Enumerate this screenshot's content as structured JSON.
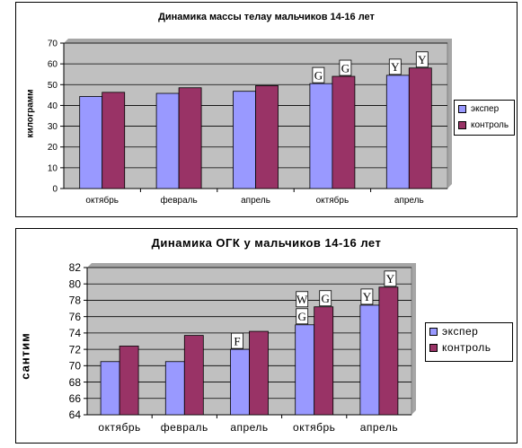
{
  "colors": {
    "plot_bg": "#c0c0c0",
    "eksper": "#9999ff",
    "kontrol": "#993366"
  },
  "chart_data": [
    {
      "type": "bar",
      "title": "Динамика массы телау мальчиков 14-16 лет",
      "ylabel": "килограмм",
      "xlabel": "",
      "ylim": [
        0,
        70
      ],
      "yticks": [
        "0",
        "10",
        "20",
        "30",
        "40",
        "50",
        "60",
        "70"
      ],
      "categories": [
        "октябрь",
        "февраль",
        "апрель",
        "октябрь",
        "апрель"
      ],
      "series": [
        {
          "name": "экспер",
          "values": [
            44.3,
            45.8,
            46.8,
            50.5,
            54.5
          ]
        },
        {
          "name": "контроль",
          "values": [
            46.3,
            48.5,
            49.5,
            54.0,
            58.0
          ]
        }
      ],
      "annotations": [
        {
          "category_index": 3,
          "series_index": 0,
          "text": "G"
        },
        {
          "category_index": 3,
          "series_index": 1,
          "text": "G"
        },
        {
          "category_index": 4,
          "series_index": 0,
          "text": "Y"
        },
        {
          "category_index": 4,
          "series_index": 1,
          "text": "Y"
        }
      ],
      "grid": true,
      "legend": "right"
    },
    {
      "type": "bar",
      "title": "Динамика ОГК у мальчиков 14-16 лет",
      "ylabel": "сантим",
      "xlabel": "",
      "ylim": [
        64,
        82
      ],
      "yticks": [
        "64",
        "66",
        "68",
        "70",
        "72",
        "74",
        "76",
        "78",
        "80",
        "82"
      ],
      "categories": [
        "октябрь",
        "февраль",
        "апрель",
        "октябрь",
        "апрель"
      ],
      "series": [
        {
          "name": "экспер",
          "values": [
            70.5,
            70.5,
            72.0,
            75.0,
            77.4
          ]
        },
        {
          "name": "контроль",
          "values": [
            72.4,
            73.7,
            74.2,
            77.2,
            79.6
          ]
        }
      ],
      "annotations": [
        {
          "category_index": 2,
          "series_index": 0,
          "text": "F"
        },
        {
          "category_index": 3,
          "series_index": 0,
          "text": "G"
        },
        {
          "category_index": 3,
          "series_index": 0,
          "text": "W"
        },
        {
          "category_index": 3,
          "series_index": 1,
          "text": "G"
        },
        {
          "category_index": 4,
          "series_index": 0,
          "text": "Y"
        },
        {
          "category_index": 4,
          "series_index": 1,
          "text": "Y"
        }
      ],
      "grid": true,
      "legend": "right"
    }
  ]
}
